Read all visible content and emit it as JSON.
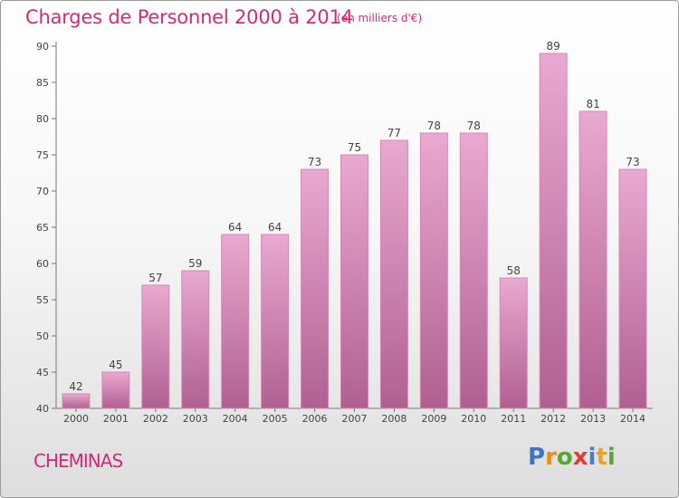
{
  "title": "Charges de Personnel 2000 à 2014",
  "subtitle": "(en milliers d'€)",
  "commune": "CHEMINAS",
  "logo": {
    "letters": [
      "P",
      "r",
      "o",
      "x",
      "i",
      "t",
      "i"
    ],
    "colors": [
      "#3f74c9",
      "#f08a1c",
      "#5aa832",
      "#e23c31",
      "#4a7ed0",
      "#f0a21c",
      "#5aa832"
    ]
  },
  "colors": {
    "bar_top": "#e9a9d0",
    "bar_bottom": "#b06090",
    "bar_stroke": "#d08ab4",
    "accent": "#d6287a"
  },
  "chart_data": {
    "type": "bar",
    "categories": [
      "2000",
      "2001",
      "2002",
      "2003",
      "2004",
      "2005",
      "2006",
      "2007",
      "2008",
      "2009",
      "2010",
      "2011",
      "2012",
      "2013",
      "2014"
    ],
    "values": [
      42,
      45,
      57,
      59,
      64,
      64,
      73,
      75,
      77,
      78,
      78,
      58,
      89,
      81,
      73
    ],
    "ylim": [
      40,
      90
    ],
    "yticks": [
      40,
      45,
      50,
      55,
      60,
      65,
      70,
      75,
      80,
      85,
      90
    ],
    "grid": false,
    "data_labels": true
  }
}
